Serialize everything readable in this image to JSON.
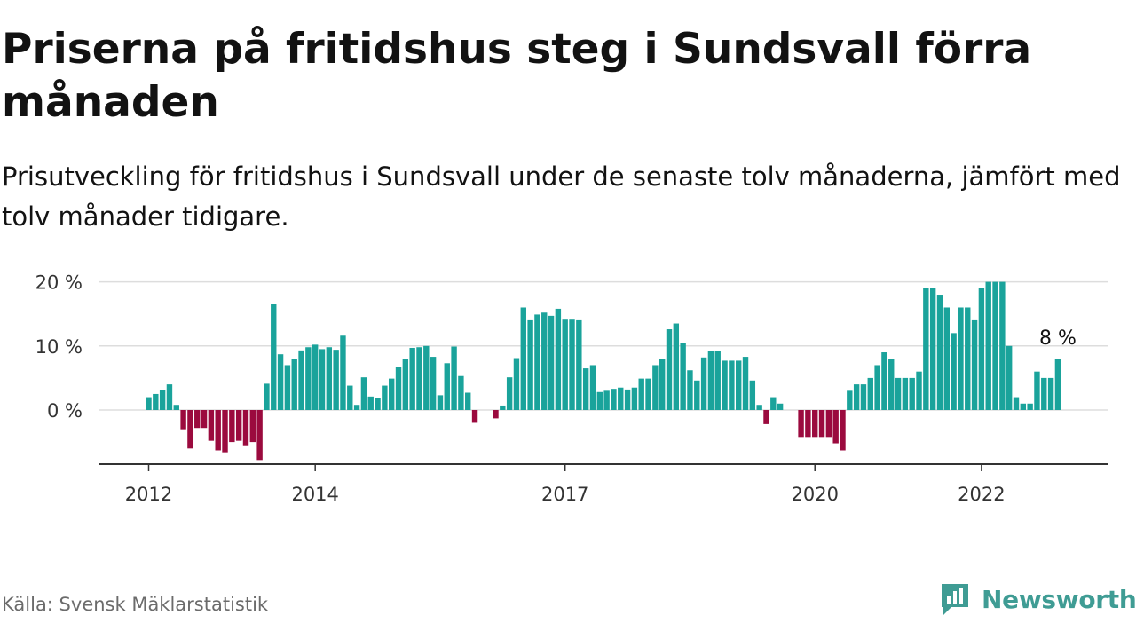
{
  "title": "Priserna på fritidshus steg i Sundsvall förra månaden",
  "subtitle": "Prisutveckling för fritidshus i Sundsvall under de senaste tolv månaderna, jämfört med tolv månader tidigare.",
  "source": "Källa: Svensk Mäklarstatistik",
  "brand": "Newsworthy",
  "colors": {
    "positive": "#1aa39b",
    "negative": "#9b0a3e",
    "grid": "#dddddd",
    "axis": "#333333",
    "brand": "#3f9c94"
  },
  "chart_data": {
    "type": "bar",
    "ylim": [
      -8.5,
      20
    ],
    "yticks": [
      0,
      10,
      20
    ],
    "ytick_labels": [
      "0 %",
      "10 %",
      "20 %"
    ],
    "xtick_labels": [
      {
        "label": "2012",
        "index": 0
      },
      {
        "label": "2014",
        "index": 24
      },
      {
        "label": "2017",
        "index": 60
      },
      {
        "label": "2020",
        "index": 96
      },
      {
        "label": "2022",
        "index": 120
      }
    ],
    "last_value_label": "8 %",
    "values": [
      2,
      2.5,
      3.1,
      4,
      0.8,
      -3,
      -6,
      -2.8,
      -2.8,
      -4.8,
      -6.3,
      -6.6,
      -5,
      -4.8,
      -5.5,
      -5,
      -7.8,
      4.1,
      16.5,
      8.7,
      7,
      8,
      9.3,
      9.8,
      10.2,
      9.5,
      9.8,
      9.4,
      11.6,
      3.8,
      0.8,
      5.1,
      2.1,
      1.8,
      3.8,
      4.9,
      6.7,
      7.9,
      9.7,
      9.8,
      10,
      8.3,
      2.3,
      7.3,
      9.9,
      5.3,
      2.7,
      -2,
      0,
      0,
      -1.3,
      0.7,
      5.1,
      8.1,
      16,
      14,
      14.9,
      15.2,
      14.7,
      15.8,
      14.1,
      14.1,
      14,
      6.5,
      7,
      2.8,
      3,
      3.3,
      3.5,
      3.2,
      3.5,
      4.9,
      4.9,
      7,
      7.9,
      12.6,
      13.5,
      10.5,
      6.2,
      4.6,
      8.2,
      9.2,
      9.2,
      7.7,
      7.7,
      7.7,
      8.3,
      4.6,
      0.8,
      -2.2,
      2,
      1,
      0,
      0,
      -4.2,
      -4.2,
      -4.2,
      -4.2,
      -4.2,
      -5.2,
      -6.3,
      3,
      4,
      4,
      5,
      7,
      9,
      8,
      5,
      5,
      5,
      6,
      19,
      19,
      18,
      16,
      12,
      16,
      16,
      14,
      19,
      20,
      20,
      20,
      10,
      2,
      1,
      1,
      6,
      5,
      5,
      8
    ]
  }
}
